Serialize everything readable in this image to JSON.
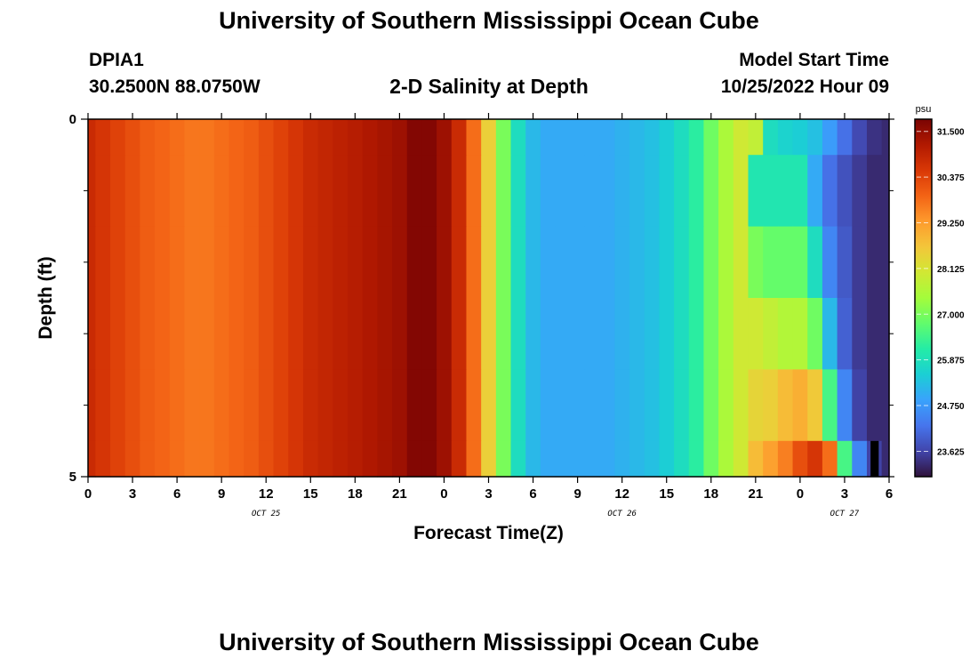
{
  "header": {
    "title": "University of Southern Mississippi Ocean Cube",
    "station": "DPIA1",
    "coords": "30.2500N  88.0750W",
    "subtitle": "2-D Salinity at Depth",
    "model_start_label": "Model Start Time",
    "model_start_value": "10/25/2022 Hour 09"
  },
  "footer": {
    "title": "University of Southern Mississippi Ocean Cube"
  },
  "chart_data": {
    "type": "heatmap",
    "title": "2-D Salinity at Depth",
    "xlabel": "Forecast Time(Z)",
    "ylabel": "Depth (ft)",
    "x_range_hours": [
      0,
      54
    ],
    "x_tick_labels": [
      "0",
      "3",
      "6",
      "9",
      "12",
      "15",
      "18",
      "21",
      "0",
      "3",
      "6",
      "9",
      "12",
      "15",
      "18",
      "21",
      "0",
      "3",
      "6"
    ],
    "date_labels": [
      {
        "label": "OCT 25",
        "hour": 12
      },
      {
        "label": "OCT 26",
        "hour": 36
      },
      {
        "label": "OCT 27",
        "hour": 51
      }
    ],
    "y_range": [
      0,
      5
    ],
    "y_tick_labels": [
      "0",
      "5"
    ],
    "y_minor_ticks": [
      1,
      2,
      3,
      4
    ],
    "colorbar": {
      "unit": "psu",
      "range": [
        23.0,
        31.8
      ],
      "tick_labels": [
        "31.500",
        "30.375",
        "29.250",
        "28.125",
        "27.000",
        "25.875",
        "24.750",
        "23.625"
      ],
      "colors": [
        "#30123b",
        "#4145ab",
        "#4675ed",
        "#39a2fc",
        "#1bcfd4",
        "#24eca6",
        "#61fc6c",
        "#a4fc3b",
        "#d1e834",
        "#f3c63a",
        "#fe9b2d",
        "#f36315",
        "#d93806",
        "#b11901",
        "#7a0403"
      ]
    },
    "time_hours": [
      0,
      1,
      2,
      3,
      4,
      5,
      6,
      7,
      8,
      9,
      10,
      11,
      12,
      13,
      14,
      15,
      16,
      17,
      18,
      19,
      20,
      21,
      22,
      23,
      24,
      25,
      26,
      27,
      28,
      29,
      30,
      31,
      32,
      33,
      34,
      35,
      36,
      37,
      38,
      39,
      40,
      41,
      42,
      43,
      44,
      45,
      46,
      47,
      48,
      49,
      50,
      51,
      52,
      53,
      54
    ],
    "depth_layers_ft": [
      0,
      1,
      2,
      3,
      4,
      5
    ],
    "salinity_by_layer": [
      [
        30.8,
        30.6,
        30.4,
        30.2,
        30.0,
        29.9,
        29.8,
        29.7,
        29.7,
        29.8,
        29.9,
        30.0,
        30.2,
        30.4,
        30.6,
        30.8,
        30.9,
        31.0,
        31.1,
        31.2,
        31.3,
        31.4,
        31.7,
        31.7,
        31.4,
        30.8,
        29.8,
        28.5,
        27.0,
        25.8,
        25.2,
        25.0,
        25.0,
        25.0,
        25.0,
        25.0,
        25.1,
        25.2,
        25.3,
        25.5,
        25.8,
        26.2,
        26.9,
        27.5,
        28.0,
        27.8,
        25.8,
        25.6,
        25.5,
        25.3,
        24.8,
        24.2,
        23.7,
        23.4,
        23.3
      ],
      [
        30.8,
        30.6,
        30.4,
        30.2,
        30.0,
        29.9,
        29.8,
        29.7,
        29.7,
        29.8,
        29.9,
        30.0,
        30.2,
        30.4,
        30.6,
        30.8,
        30.9,
        31.0,
        31.1,
        31.2,
        31.3,
        31.4,
        31.7,
        31.7,
        31.4,
        30.8,
        29.8,
        28.5,
        27.0,
        25.8,
        25.2,
        25.0,
        25.0,
        25.0,
        25.0,
        25.0,
        25.1,
        25.2,
        25.3,
        25.5,
        25.8,
        26.2,
        26.9,
        27.5,
        28.0,
        26.0,
        26.0,
        26.0,
        26.0,
        25.0,
        24.2,
        23.8,
        23.5,
        23.3,
        23.3
      ],
      [
        30.8,
        30.6,
        30.4,
        30.2,
        30.0,
        29.9,
        29.8,
        29.7,
        29.7,
        29.8,
        29.9,
        30.0,
        30.2,
        30.4,
        30.6,
        30.8,
        30.9,
        31.0,
        31.1,
        31.2,
        31.3,
        31.4,
        31.7,
        31.7,
        31.4,
        30.8,
        29.8,
        28.5,
        27.0,
        25.8,
        25.2,
        25.0,
        25.0,
        25.0,
        25.0,
        25.0,
        25.1,
        25.2,
        25.3,
        25.5,
        25.8,
        26.2,
        26.9,
        27.5,
        28.0,
        27.0,
        26.8,
        26.8,
        26.8,
        25.8,
        24.5,
        23.9,
        23.5,
        23.3,
        23.3
      ],
      [
        30.8,
        30.6,
        30.4,
        30.2,
        30.0,
        29.9,
        29.8,
        29.7,
        29.7,
        29.8,
        29.9,
        30.0,
        30.2,
        30.4,
        30.6,
        30.8,
        30.9,
        31.0,
        31.1,
        31.2,
        31.3,
        31.4,
        31.7,
        31.7,
        31.4,
        30.8,
        29.8,
        28.5,
        27.0,
        25.8,
        25.2,
        25.0,
        25.0,
        25.0,
        25.0,
        25.0,
        25.1,
        25.2,
        25.3,
        25.5,
        25.8,
        26.2,
        26.9,
        27.5,
        28.0,
        28.0,
        27.8,
        27.6,
        27.6,
        26.9,
        25.2,
        24.0,
        23.5,
        23.3,
        23.3
      ],
      [
        30.8,
        30.6,
        30.4,
        30.2,
        30.0,
        29.9,
        29.8,
        29.7,
        29.7,
        29.8,
        29.9,
        30.0,
        30.2,
        30.4,
        30.6,
        30.8,
        30.9,
        31.0,
        31.1,
        31.2,
        31.3,
        31.4,
        31.7,
        31.7,
        31.4,
        30.8,
        29.8,
        28.5,
        27.0,
        25.8,
        25.2,
        25.0,
        25.0,
        25.0,
        25.0,
        25.0,
        25.1,
        25.2,
        25.3,
        25.5,
        25.8,
        26.2,
        26.9,
        27.5,
        28.0,
        28.4,
        28.5,
        28.8,
        29.0,
        28.6,
        26.5,
        24.5,
        23.6,
        23.3,
        23.3
      ],
      [
        30.8,
        30.6,
        30.4,
        30.2,
        30.0,
        29.9,
        29.8,
        29.7,
        29.7,
        29.8,
        29.9,
        30.0,
        30.2,
        30.4,
        30.6,
        30.8,
        30.9,
        31.0,
        31.1,
        31.2,
        31.3,
        31.4,
        31.7,
        31.7,
        31.4,
        30.8,
        29.8,
        28.5,
        27.0,
        25.8,
        25.2,
        25.0,
        25.0,
        25.0,
        25.0,
        25.0,
        25.1,
        25.2,
        25.3,
        25.5,
        25.8,
        26.2,
        26.9,
        27.5,
        28.0,
        28.8,
        29.2,
        29.6,
        30.2,
        30.6,
        29.8,
        26.5,
        24.5,
        23.6,
        23.3
      ]
    ],
    "missing_cell": {
      "hour": 53,
      "layer": 5
    }
  }
}
